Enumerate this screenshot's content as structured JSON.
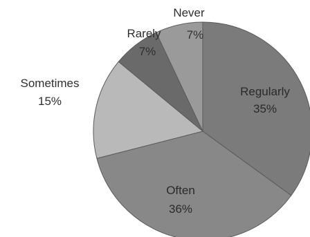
{
  "chart_data": {
    "type": "pie",
    "title": "",
    "slices": [
      {
        "label": "Regularly",
        "value": 35,
        "value_label": "35%",
        "color": "#7b7b7b"
      },
      {
        "label": "Often",
        "value": 36,
        "value_label": "36%",
        "color": "#888888"
      },
      {
        "label": "Sometimes",
        "value": 15,
        "value_label": "15%",
        "color": "#b9b9b9"
      },
      {
        "label": "Rarely",
        "value": 7,
        "value_label": "7%",
        "color": "#6a6a6a"
      },
      {
        "label": "Never",
        "value": 7,
        "value_label": "7%",
        "color": "#9a9a9a"
      }
    ],
    "legend": "none",
    "start_angle": "12 o'clock",
    "direction": "clockwise"
  }
}
